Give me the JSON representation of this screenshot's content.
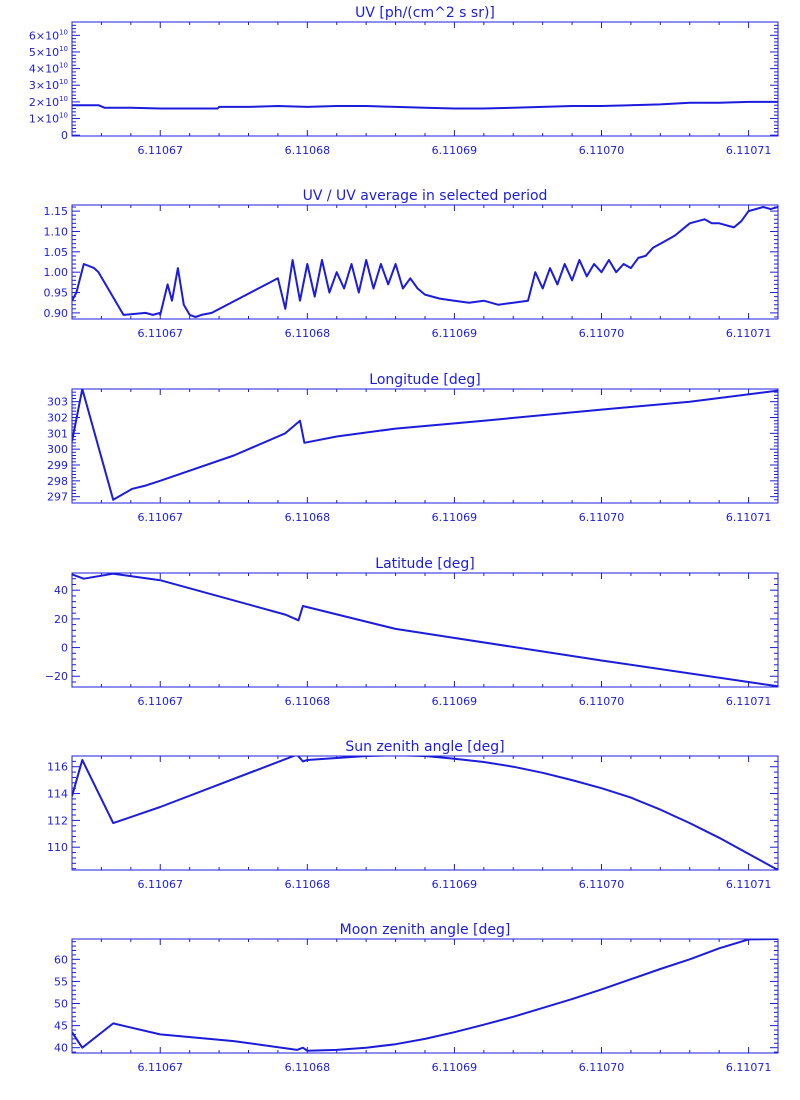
{
  "colors": {
    "axis": "#1c1cdc",
    "line": "#1c1cdc",
    "background": "#ffffff"
  },
  "chart_data": [
    {
      "type": "line",
      "title": "UV [ph/(cm^2 s sr)]",
      "xlim": [
        6.110664,
        6.110712
      ],
      "ylim": [
        -500000000,
        68000000000
      ],
      "xticks": [
        6.11067,
        6.11068,
        6.11069,
        6.1107,
        6.11071
      ],
      "xtick_labels": [
        "6.11067",
        "6.11068",
        "6.11069",
        "6.11070",
        "6.11071"
      ],
      "yticks": [
        0,
        10000000000,
        20000000000,
        30000000000,
        40000000000,
        50000000000,
        60000000000
      ],
      "ytick_labels": [
        {
          "mant": "0",
          "exp": ""
        },
        {
          "mant": "1×10",
          "exp": "10"
        },
        {
          "mant": "2×10",
          "exp": "10"
        },
        {
          "mant": "3×10",
          "exp": "10"
        },
        {
          "mant": "4×10",
          "exp": "10"
        },
        {
          "mant": "5×10",
          "exp": "10"
        },
        {
          "mant": "6×10",
          "exp": "10"
        }
      ],
      "series": [
        {
          "x": [
            6.110664,
            6.1106658,
            6.1106662,
            6.110668,
            6.11067,
            6.110672,
            6.1106739,
            6.110674,
            6.110676,
            6.110678,
            6.11068,
            6.110682,
            6.110684,
            6.110686,
            6.110688,
            6.11069,
            6.110692,
            6.110694,
            6.110696,
            6.110698,
            6.1107,
            6.110702,
            6.110704,
            6.110706,
            6.110708,
            6.11071,
            6.110712
          ],
          "y": [
            18000000000,
            18000000000,
            16500000000,
            16500000000,
            16000000000,
            16000000000,
            16000000000,
            17000000000,
            17000000000,
            17500000000,
            17000000000,
            17500000000,
            17500000000,
            17000000000,
            16500000000,
            16000000000,
            16000000000,
            16500000000,
            17000000000,
            17500000000,
            17500000000,
            18000000000,
            18500000000,
            19500000000,
            19500000000,
            20000000000,
            20000000000
          ]
        }
      ]
    },
    {
      "type": "line",
      "title": "UV / UV average in selected period",
      "xlim": [
        6.110664,
        6.110712
      ],
      "ylim": [
        0.885,
        1.165
      ],
      "xticks": [
        6.11067,
        6.11068,
        6.11069,
        6.1107,
        6.11071
      ],
      "xtick_labels": [
        "6.11067",
        "6.11068",
        "6.11069",
        "6.11070",
        "6.11071"
      ],
      "yticks": [
        0.9,
        0.95,
        1.0,
        1.05,
        1.1,
        1.15
      ],
      "ytick_labels": [
        "0.90",
        "0.95",
        "1.00",
        "1.05",
        "1.10",
        "1.15"
      ],
      "series": [
        {
          "x": [
            6.110664,
            6.1106643,
            6.1106648,
            6.1106655,
            6.1106658,
            6.1106675,
            6.110669,
            6.1106695,
            6.11067,
            6.11067,
            6.1106705,
            6.1106708,
            6.1106712,
            6.1106716,
            6.110672,
            6.1106724,
            6.1106728,
            6.1106735,
            6.110678,
            6.1106785,
            6.110679,
            6.1106795,
            6.11068,
            6.1106805,
            6.110681,
            6.1106815,
            6.110682,
            6.1106825,
            6.110683,
            6.1106835,
            6.110684,
            6.1106845,
            6.110685,
            6.1106855,
            6.110686,
            6.1106865,
            6.110687,
            6.1106875,
            6.110688,
            6.110689,
            6.11069,
            6.110691,
            6.110692,
            6.110693,
            6.110694,
            6.110695,
            6.1106955,
            6.110696,
            6.1106965,
            6.110697,
            6.1106975,
            6.110698,
            6.1106985,
            6.110699,
            6.1106995,
            6.1107,
            6.1107005,
            6.110701,
            6.1107015,
            6.110702,
            6.1107025,
            6.110703,
            6.1107035,
            6.110704,
            6.1107045,
            6.110705,
            6.110706,
            6.110707,
            6.1107075,
            6.110708,
            6.110709,
            6.1107095,
            6.11071,
            6.110711,
            6.1107115,
            6.110712
          ],
          "y": [
            0.93,
            0.95,
            1.02,
            1.01,
            1.0,
            0.895,
            0.9,
            0.895,
            0.9,
            0.895,
            0.97,
            0.93,
            1.01,
            0.92,
            0.895,
            0.89,
            0.895,
            0.9,
            0.985,
            0.91,
            1.03,
            0.93,
            1.02,
            0.94,
            1.03,
            0.95,
            1.0,
            0.96,
            1.02,
            0.95,
            1.03,
            0.96,
            1.02,
            0.97,
            1.02,
            0.96,
            0.985,
            0.96,
            0.945,
            0.935,
            0.93,
            0.925,
            0.93,
            0.92,
            0.925,
            0.93,
            1.0,
            0.96,
            1.01,
            0.97,
            1.02,
            0.98,
            1.03,
            0.99,
            1.02,
            1.0,
            1.03,
            1.0,
            1.02,
            1.01,
            1.035,
            1.04,
            1.06,
            1.07,
            1.08,
            1.09,
            1.12,
            1.13,
            1.12,
            1.12,
            1.11,
            1.125,
            1.15,
            1.16,
            1.155,
            1.16
          ]
        }
      ]
    },
    {
      "type": "line",
      "title": "Longitude [deg]",
      "xlim": [
        6.110664,
        6.110712
      ],
      "ylim": [
        296.6,
        303.8
      ],
      "xticks": [
        6.11067,
        6.11068,
        6.11069,
        6.1107,
        6.11071
      ],
      "xtick_labels": [
        "6.11067",
        "6.11068",
        "6.11069",
        "6.11070",
        "6.11071"
      ],
      "yticks": [
        297,
        298,
        299,
        300,
        301,
        302,
        303
      ],
      "ytick_labels": [
        "297",
        "298",
        "299",
        "300",
        "301",
        "302",
        "303"
      ],
      "series": [
        {
          "x": [
            6.110664,
            6.1106647,
            6.1106668,
            6.1106681,
            6.110669,
            6.11067,
            6.110675,
            6.1106785,
            6.1106795,
            6.1106798,
            6.110682,
            6.110686,
            6.110692,
            6.1107,
            6.110706,
            6.110712
          ],
          "y": [
            300.5,
            303.8,
            296.8,
            297.5,
            297.7,
            298.0,
            299.6,
            301.0,
            301.8,
            300.4,
            300.8,
            301.3,
            301.8,
            302.5,
            303.0,
            303.7
          ]
        }
      ]
    },
    {
      "type": "line",
      "title": "Latitude [deg]",
      "xlim": [
        6.110664,
        6.110712
      ],
      "ylim": [
        -27.5,
        52
      ],
      "xticks": [
        6.11067,
        6.11068,
        6.11069,
        6.1107,
        6.11071
      ],
      "xtick_labels": [
        "6.11067",
        "6.11068",
        "6.11069",
        "6.11070",
        "6.11071"
      ],
      "yticks": [
        -20,
        0,
        20,
        40
      ],
      "ytick_labels": [
        "−20",
        "0",
        "20",
        "40"
      ],
      "series": [
        {
          "x": [
            6.110664,
            6.1106648,
            6.1106668,
            6.11067,
            6.1106785,
            6.1106794,
            6.1106797,
            6.110686,
            6.1107,
            6.110712
          ],
          "y": [
            51,
            48,
            51.5,
            47,
            23,
            19,
            29,
            13,
            -9,
            -27
          ]
        }
      ]
    },
    {
      "type": "line",
      "title": "Sun zenith angle [deg]",
      "xlim": [
        6.110664,
        6.110712
      ],
      "ylim": [
        108.3,
        116.8
      ],
      "xticks": [
        6.11067,
        6.11068,
        6.11069,
        6.1107,
        6.11071
      ],
      "xtick_labels": [
        "6.11067",
        "6.11068",
        "6.11069",
        "6.11070",
        "6.11071"
      ],
      "yticks": [
        110,
        112,
        114,
        116
      ],
      "ytick_labels": [
        "110",
        "112",
        "114",
        "116"
      ],
      "series": [
        {
          "x": [
            6.110664,
            6.1106647,
            6.1106668,
            6.11067,
            6.1106793,
            6.1106797,
            6.11068,
            6.110684,
            6.110686,
            6.110688,
            6.11069,
            6.110692,
            6.110694,
            6.110696,
            6.110698,
            6.1107,
            6.110702,
            6.110704,
            6.110706,
            6.110708,
            6.11071,
            6.110712
          ],
          "y": [
            113.8,
            116.5,
            111.8,
            113.0,
            116.9,
            116.4,
            116.5,
            116.8,
            116.85,
            116.8,
            116.6,
            116.35,
            116.0,
            115.55,
            115.0,
            114.4,
            113.7,
            112.8,
            111.8,
            110.7,
            109.5,
            108.3
          ]
        }
      ]
    },
    {
      "type": "line",
      "title": "Moon zenith angle [deg]",
      "xlim": [
        6.110664,
        6.110712
      ],
      "ylim": [
        38.8,
        64.6
      ],
      "xticks": [
        6.11067,
        6.11068,
        6.11069,
        6.1107,
        6.11071
      ],
      "xtick_labels": [
        "6.11067",
        "6.11068",
        "6.11069",
        "6.11070",
        "6.11071"
      ],
      "yticks": [
        40,
        45,
        50,
        55,
        60
      ],
      "ytick_labels": [
        "40",
        "45",
        "50",
        "55",
        "60"
      ],
      "series": [
        {
          "x": [
            6.110664,
            6.1106647,
            6.1106668,
            6.11067,
            6.110675,
            6.1106793,
            6.1106797,
            6.11068,
            6.110682,
            6.110684,
            6.110686,
            6.110688,
            6.11069,
            6.110692,
            6.110694,
            6.110696,
            6.110698,
            6.1107,
            6.110702,
            6.110704,
            6.110706,
            6.110708,
            6.11071,
            6.110712
          ],
          "y": [
            43.5,
            40.0,
            45.5,
            43.0,
            41.5,
            39.5,
            40.0,
            39.3,
            39.5,
            40.0,
            40.8,
            42.0,
            43.5,
            45.2,
            47.0,
            49.0,
            51.0,
            53.2,
            55.5,
            57.8,
            60.0,
            62.5,
            64.5,
            64.6
          ]
        }
      ]
    }
  ]
}
